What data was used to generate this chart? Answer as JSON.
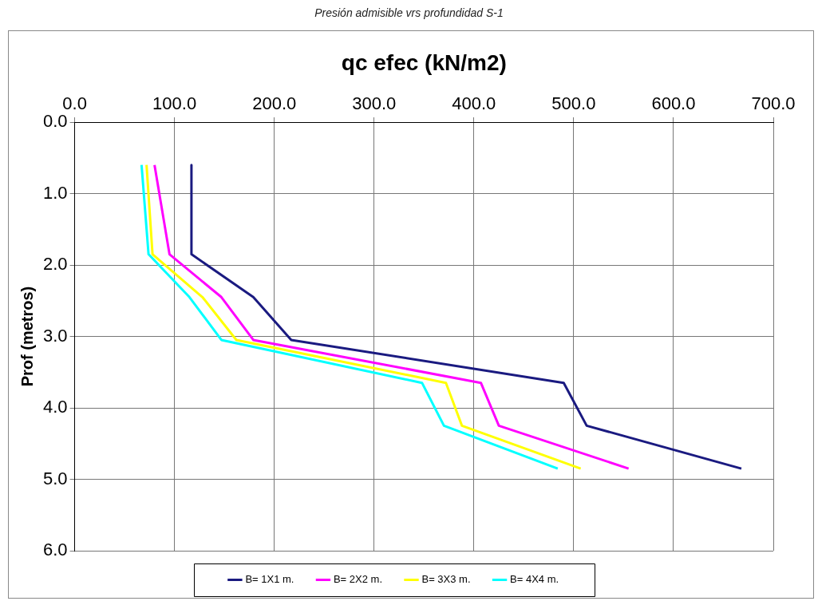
{
  "chart_data": {
    "type": "line",
    "title": "Presión admisible vrs profundidad S-1",
    "xlabel": "qc efec (kN/m2)",
    "ylabel": "Prof (metros)",
    "xlim": [
      0,
      700
    ],
    "xticks": [
      {
        "value": 0,
        "label": "0.0"
      },
      {
        "value": 100,
        "label": "100.0"
      },
      {
        "value": 200,
        "label": "200.0"
      },
      {
        "value": 300,
        "label": "300.0"
      },
      {
        "value": 400,
        "label": "400.0"
      },
      {
        "value": 500,
        "label": "500.0"
      },
      {
        "value": 600,
        "label": "600.0"
      },
      {
        "value": 700,
        "label": "700.0"
      }
    ],
    "ylim": [
      6,
      0
    ],
    "yticks": [
      {
        "value": 0,
        "label": "0.0"
      },
      {
        "value": 1,
        "label": "1.0"
      },
      {
        "value": 2,
        "label": "2.0"
      },
      {
        "value": 3,
        "label": "3.0"
      },
      {
        "value": 4,
        "label": "4.0"
      },
      {
        "value": 5,
        "label": "5.0"
      },
      {
        "value": 6,
        "label": "6.0"
      }
    ],
    "grid": true,
    "legend": "bottom",
    "series": [
      {
        "name": "B= 1X1 m.",
        "color": "#1a1a80",
        "x": [
          117,
          117,
          179,
          217,
          490,
          513,
          668
        ],
        "values": [
          0.6,
          1.85,
          2.45,
          3.05,
          3.65,
          4.25,
          4.85
        ]
      },
      {
        "name": "B= 2X2 m.",
        "color": "#ff00ff",
        "x": [
          80,
          95,
          147,
          179,
          407,
          425,
          555
        ],
        "values": [
          0.6,
          1.85,
          2.45,
          3.05,
          3.65,
          4.25,
          4.85
        ]
      },
      {
        "name": "B= 3X3 m.",
        "color": "#ffff00",
        "x": [
          72,
          78,
          128,
          162,
          372,
          388,
          507
        ],
        "values": [
          0.6,
          1.85,
          2.45,
          3.05,
          3.65,
          4.25,
          4.85
        ]
      },
      {
        "name": "B= 4X4 m.",
        "color": "#00ffff",
        "x": [
          67,
          74,
          115,
          147,
          348,
          370,
          484
        ],
        "values": [
          0.6,
          1.85,
          2.45,
          3.05,
          3.65,
          4.25,
          4.85
        ]
      }
    ]
  }
}
